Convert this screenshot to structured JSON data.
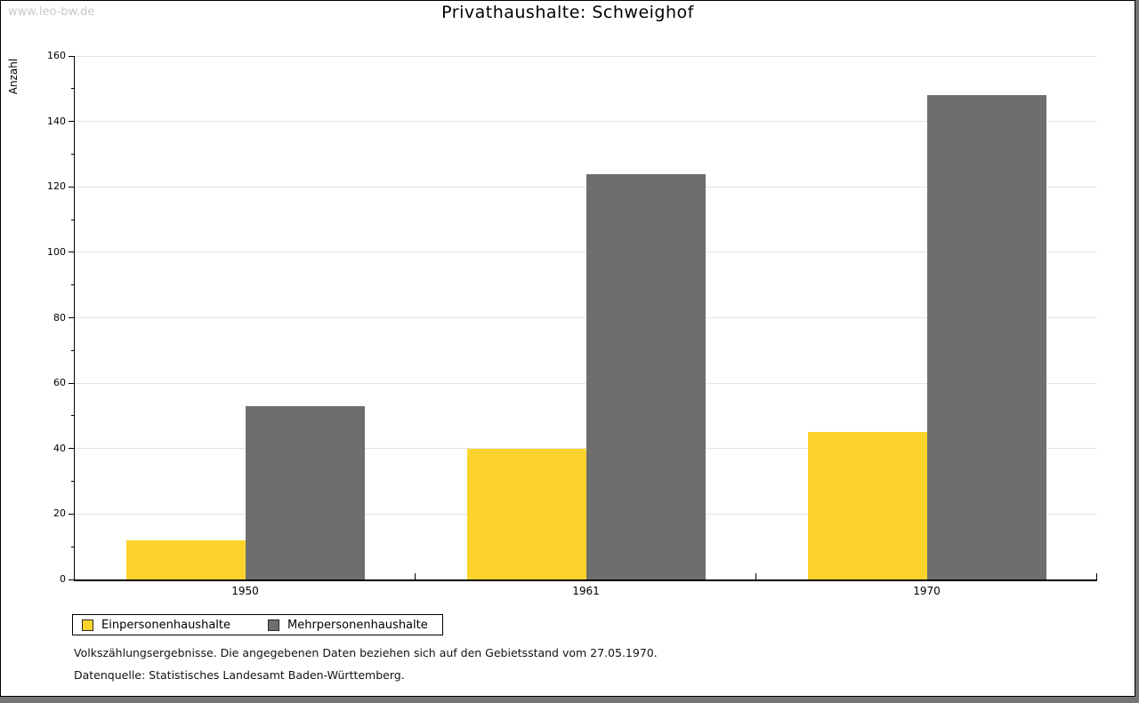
{
  "watermark": "www.leo-bw.de",
  "chart_data": {
    "type": "bar",
    "title": "Privathaushalte: Schweighof",
    "categories": [
      "1950",
      "1961",
      "1970"
    ],
    "series": [
      {
        "name": "Einpersonenhaushalte",
        "color": "#FCD32D",
        "values": [
          12,
          40,
          45
        ]
      },
      {
        "name": "Mehrpersonenhaushalte",
        "color": "#6E6E6E",
        "values": [
          53,
          124,
          148
        ]
      }
    ],
    "xlabel": "",
    "ylabel": "Anzahl",
    "ylim": [
      0,
      160
    ],
    "ytick_step": 20,
    "yminor_step": 10,
    "grid": true,
    "legend_position": "bottom-left"
  },
  "footer": {
    "line1": "Volkszählungsergebnisse. Die angegebenen Daten beziehen sich auf den Gebietsstand vom 27.05.1970.",
    "line2": "Datenquelle: Statistisches Landesamt Baden-Württemberg."
  },
  "colors": {
    "bar_yellow": "#FCD32D",
    "bar_gray": "#6E6E6E",
    "gridline": "#E4E4E4",
    "axis": "#000000",
    "watermark": "#C9C9C9",
    "frame_shadow": "#757575"
  }
}
